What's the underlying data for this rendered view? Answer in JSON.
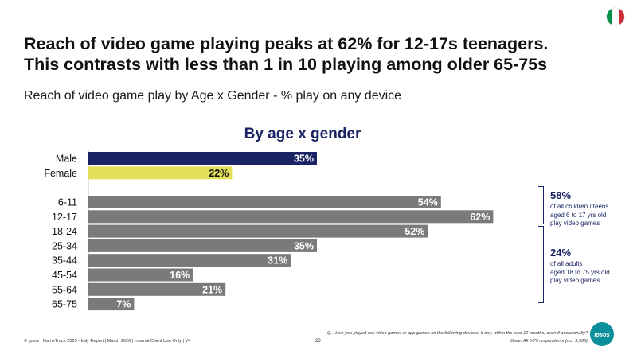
{
  "title_line1": "Reach of video game playing peaks at 62% for 12-17s teenagers.",
  "title_line2": "This contrasts with less than 1 in 10 playing among older 65-75s",
  "subtitle": "Reach of video game play by Age x Gender - % play on any device",
  "flag_colors": [
    "#009246",
    "#ffffff",
    "#ce2b37"
  ],
  "flag_icon": "italy-flag-icon",
  "chart_data": {
    "type": "bar",
    "orientation": "horizontal",
    "title": "By age x gender",
    "unit": "%",
    "xlim": [
      0,
      100
    ],
    "grid": false,
    "groups": [
      {
        "name": "gender",
        "categories": [
          "Male",
          "Female"
        ],
        "values": [
          35,
          22
        ],
        "labels": [
          "35%",
          "22%"
        ],
        "colors": [
          "#1a2464",
          "#e2df5a"
        ],
        "label_colors": [
          "#ffffff",
          "#111111"
        ]
      },
      {
        "name": "age",
        "categories": [
          "6-11",
          "12-17",
          "18-24",
          "25-34",
          "35-44",
          "45-54",
          "55-64",
          "65-75"
        ],
        "values": [
          54,
          62,
          52,
          35,
          31,
          16,
          21,
          7
        ],
        "labels": [
          "54%",
          "62%",
          "52%",
          "35%",
          "31%",
          "16%",
          "21%",
          "7%"
        ],
        "color": "#7a7a7a",
        "label_color": "#ffffff"
      }
    ]
  },
  "notes": [
    {
      "value": "58%",
      "text": [
        "of all children / teens",
        "aged 6 to 17 yrs old",
        "play video games"
      ]
    },
    {
      "value": "24%",
      "text": [
        "of all adults",
        "aged 18 to 75 yrs old",
        "play video games"
      ]
    }
  ],
  "footer": {
    "left": "© Ipsos | GameTrack 2025 - Italy Report | March 2026 | Internal Client Use Only | V4",
    "page": "23",
    "question": "Q. Have you played any video games or app games on the following devices, if any, within the past 12 months, even if occasionally?",
    "base": "Base: All 6-75 respondents (n.c. 3,398)"
  },
  "logo_text": "Ipsos",
  "accent_color": "#1a2464"
}
